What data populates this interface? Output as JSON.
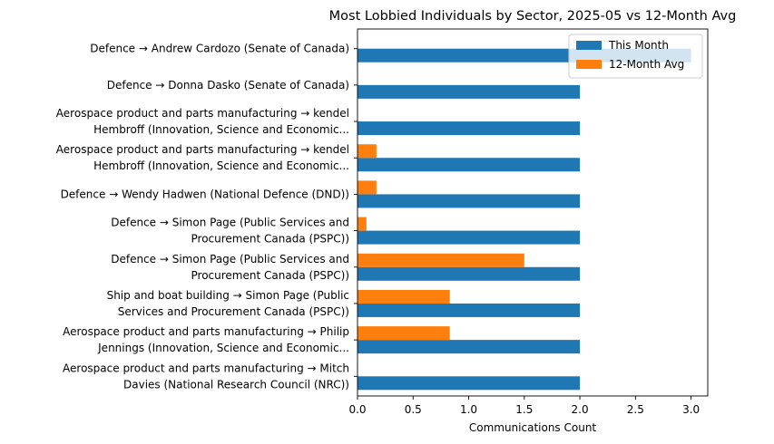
{
  "chart_data": {
    "type": "bar",
    "orientation": "horizontal",
    "title": "Most Lobbied Individuals by Sector, 2025-05 vs 12-Month Avg",
    "xlabel": "Communications Count",
    "ylabel": "",
    "xlim": [
      0,
      3.15
    ],
    "xticks": [
      "0.0",
      "0.5",
      "1.0",
      "1.5",
      "2.0",
      "2.5",
      "3.0"
    ],
    "xtick_values": [
      0,
      0.5,
      1.0,
      1.5,
      2.0,
      2.5,
      3.0
    ],
    "legend_position": "top-right",
    "categories": [
      [
        "Defence → Andrew Cardozo (Senate of Canada)"
      ],
      [
        "Defence → Donna Dasko (Senate of Canada)"
      ],
      [
        "Aerospace product and parts manufacturing → kendel",
        "Hembroff (Innovation, Science and Economic..."
      ],
      [
        "Aerospace product and parts manufacturing → kendel",
        "Hembroff (Innovation, Science and Economic..."
      ],
      [
        "Defence → Wendy Hadwen (National Defence (DND))"
      ],
      [
        "Defence → Simon Page (Public Services and",
        "Procurement Canada (PSPC))"
      ],
      [
        "Defence → Simon Page (Public Services and",
        "Procurement Canada (PSPC))"
      ],
      [
        "Ship and boat building → Simon Page (Public",
        "Services and Procurement Canada (PSPC))"
      ],
      [
        "Aerospace product and parts manufacturing → Philip",
        "Jennings (Innovation, Science and Economic..."
      ],
      [
        "Aerospace product and parts manufacturing → Mitch",
        "Davies (National Research Council (NRC))"
      ]
    ],
    "series": [
      {
        "name": "This Month",
        "color": "#1f77b4",
        "values": [
          3,
          2,
          2,
          2,
          2,
          2,
          2,
          2,
          2,
          2
        ]
      },
      {
        "name": "12-Month Avg",
        "color": "#ff7f0e",
        "values": [
          0,
          0,
          0,
          0.17,
          0.17,
          0.08,
          1.5,
          0.83,
          0.83,
          0
        ]
      }
    ]
  }
}
